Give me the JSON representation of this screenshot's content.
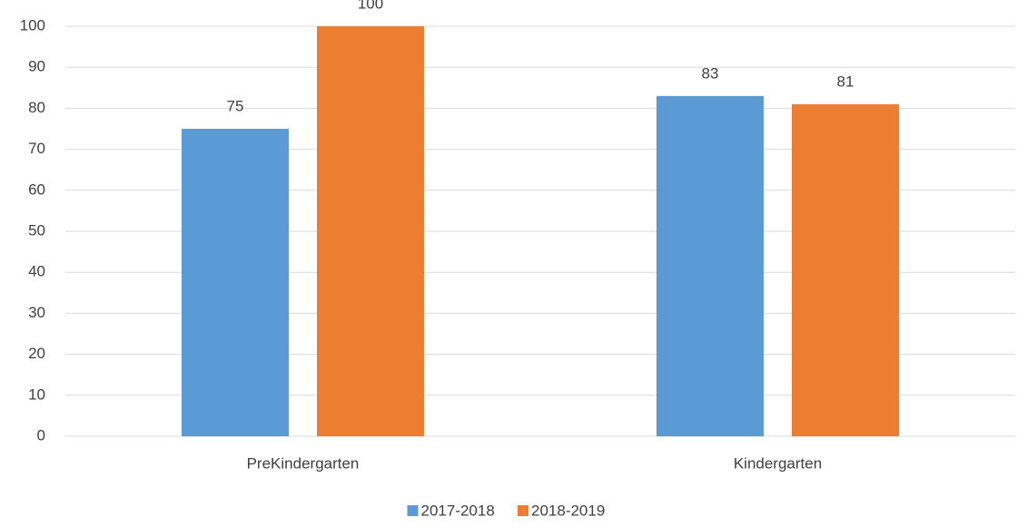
{
  "chart_data": {
    "type": "bar",
    "categories": [
      "PreKindergarten",
      "Kindergarten"
    ],
    "series": [
      {
        "name": "2017-2018",
        "color": "#5b9bd5",
        "values": [
          75,
          83
        ]
      },
      {
        "name": "2018-2019",
        "color": "#ed7d31",
        "values": [
          100,
          81
        ]
      }
    ],
    "ylim": [
      0,
      100
    ],
    "yticks": [
      0,
      10,
      20,
      30,
      40,
      50,
      60,
      70,
      80,
      90,
      100
    ],
    "grid": true,
    "legend": "bottom",
    "data_labels": true
  }
}
